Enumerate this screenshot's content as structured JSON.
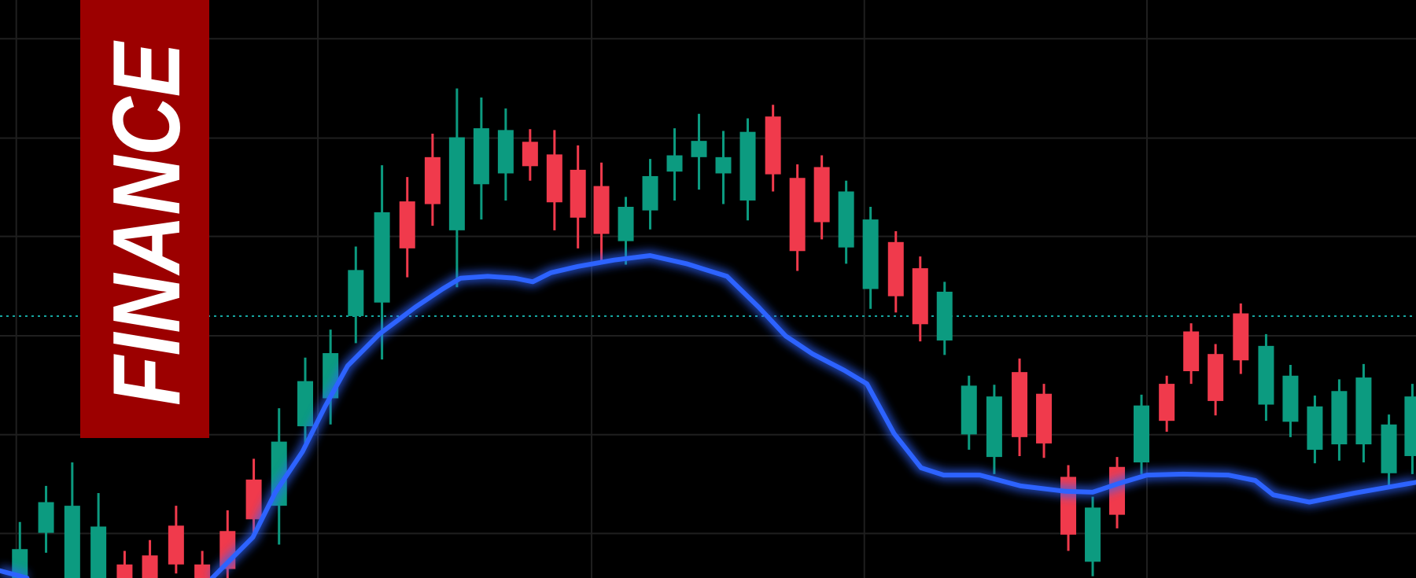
{
  "chart_data": {
    "type": "candlestick",
    "title": "FINANCE",
    "xlim": [
      0,
      156.8
    ],
    "ylim": [
      0,
      64
    ],
    "grid": true,
    "up_color": "#0c9b80",
    "down_color": "#f03a4c",
    "reference_line": 29,
    "reference_color": "#16a6a0",
    "banner_color": "#9c0000",
    "x": [
      2.2,
      5.1,
      8.0,
      10.9,
      13.8,
      16.6,
      19.5,
      22.4,
      25.2,
      28.1,
      30.9,
      33.8,
      36.6,
      39.4,
      42.3,
      45.1,
      47.9,
      50.6,
      53.3,
      56.0,
      58.7,
      61.4,
      64.0,
      66.6,
      69.3,
      72.0,
      74.7,
      77.4,
      80.1,
      82.8,
      85.6,
      88.3,
      91.0,
      93.7,
      96.4,
      99.2,
      101.9,
      104.6,
      107.3,
      110.1,
      112.9,
      115.6,
      118.3,
      121.0,
      123.7,
      126.4,
      129.2,
      131.9,
      134.6,
      137.4,
      140.2,
      142.9,
      145.6,
      148.3,
      151.0,
      153.8,
      156.4
    ],
    "open": [
      0,
      5,
      0,
      0,
      1.5,
      2.5,
      5.8,
      1.5,
      5.2,
      10.9,
      8,
      16.8,
      19.9,
      29,
      30.5,
      41.7,
      46.6,
      38.5,
      43.6,
      44.8,
      48.3,
      46.9,
      45.2,
      43.4,
      37.3,
      40.7,
      45,
      46.6,
      44.8,
      41.8,
      51.1,
      44.3,
      45.5,
      36.6,
      32,
      37.2,
      34.3,
      26.3,
      15.9,
      13.4,
      22.8,
      20.4,
      11.2,
      1.8,
      12.3,
      12.8,
      21.5,
      27.3,
      24.8,
      29.3,
      19.2,
      17.3,
      14.2,
      14.8,
      14.8,
      11.6,
      13.5
    ],
    "high": [
      6.2,
      10.2,
      12.8,
      9.4,
      3,
      4.2,
      8,
      3,
      7.5,
      13.2,
      18.8,
      24.4,
      27.5,
      36.7,
      45.7,
      44.4,
      49.2,
      54.2,
      53.2,
      52,
      49.7,
      49.6,
      47.9,
      46,
      42.2,
      46.4,
      49.8,
      51.4,
      49.5,
      50.9,
      52.4,
      45.8,
      46.8,
      44,
      41.1,
      38.4,
      35.6,
      32.8,
      22.4,
      21.4,
      24.3,
      21.5,
      12.5,
      9,
      13.4,
      20.3,
      22.4,
      28.2,
      25.9,
      30.4,
      27,
      23.6,
      20.2,
      22,
      23.7,
      18.1,
      21.5
    ],
    "low": [
      0,
      2.8,
      0,
      0,
      0,
      0,
      0.5,
      0,
      0,
      5,
      3.7,
      14.8,
      17,
      26,
      24.2,
      33.3,
      39,
      32.2,
      39.7,
      41.8,
      44,
      38.5,
      36.5,
      35.1,
      34.7,
      38.6,
      41.8,
      43,
      41.4,
      39.6,
      42.8,
      34,
      37.5,
      34.8,
      29.8,
      29.4,
      26.2,
      24.7,
      14.2,
      11.5,
      13.5,
      13.3,
      3,
      0.2,
      5.5,
      11.5,
      16.2,
      21.5,
      18,
      22.6,
      17.4,
      15.6,
      12.7,
      13,
      12.8,
      10.3,
      11.5
    ],
    "close": [
      3.2,
      8.4,
      8,
      5.7,
      0,
      0,
      1.5,
      0,
      1,
      6.5,
      15.1,
      21.8,
      24.9,
      34.1,
      40.5,
      36.5,
      41.4,
      48.8,
      49.8,
      49.6,
      45.6,
      41.6,
      39.9,
      38.1,
      41.1,
      44.5,
      46.8,
      48.4,
      46.6,
      49.4,
      44.7,
      36.2,
      39.4,
      42.8,
      39.7,
      31.2,
      28.1,
      31.7,
      21.3,
      20.1,
      15.6,
      14.9,
      4.8,
      7.8,
      7,
      19.1,
      17.4,
      22.9,
      19.6,
      24.1,
      25.7,
      22.4,
      19,
      20.7,
      22.2,
      17,
      20.1
    ],
    "ma": {
      "color": "#2d63ff",
      "x": [
        0,
        3.0,
        null,
        23.5,
        28,
        30.5,
        33.5,
        36,
        38.5,
        42,
        46,
        49,
        51,
        54,
        57,
        59,
        61,
        64,
        68,
        72,
        76,
        80.5,
        84,
        87,
        90,
        93.5,
        96,
        99,
        102,
        104.5,
        108.5,
        113,
        118,
        121,
        124,
        127,
        131,
        136,
        139,
        141,
        145,
        150,
        156.8
      ],
      "values": [
        0.8,
        0,
        null,
        0,
        4.5,
        9.5,
        14,
        19,
        23.5,
        27,
        30,
        32,
        33.2,
        33.4,
        33.2,
        32.8,
        33.8,
        34.5,
        35.2,
        35.7,
        34.8,
        33.4,
        30,
        26.8,
        24.8,
        23,
        21.5,
        16,
        12.2,
        11.4,
        11.4,
        10.2,
        9.6,
        9.5,
        10.5,
        11.4,
        11.5,
        11.4,
        10.8,
        9.2,
        8.4,
        9.4,
        10.6
      ]
    }
  }
}
